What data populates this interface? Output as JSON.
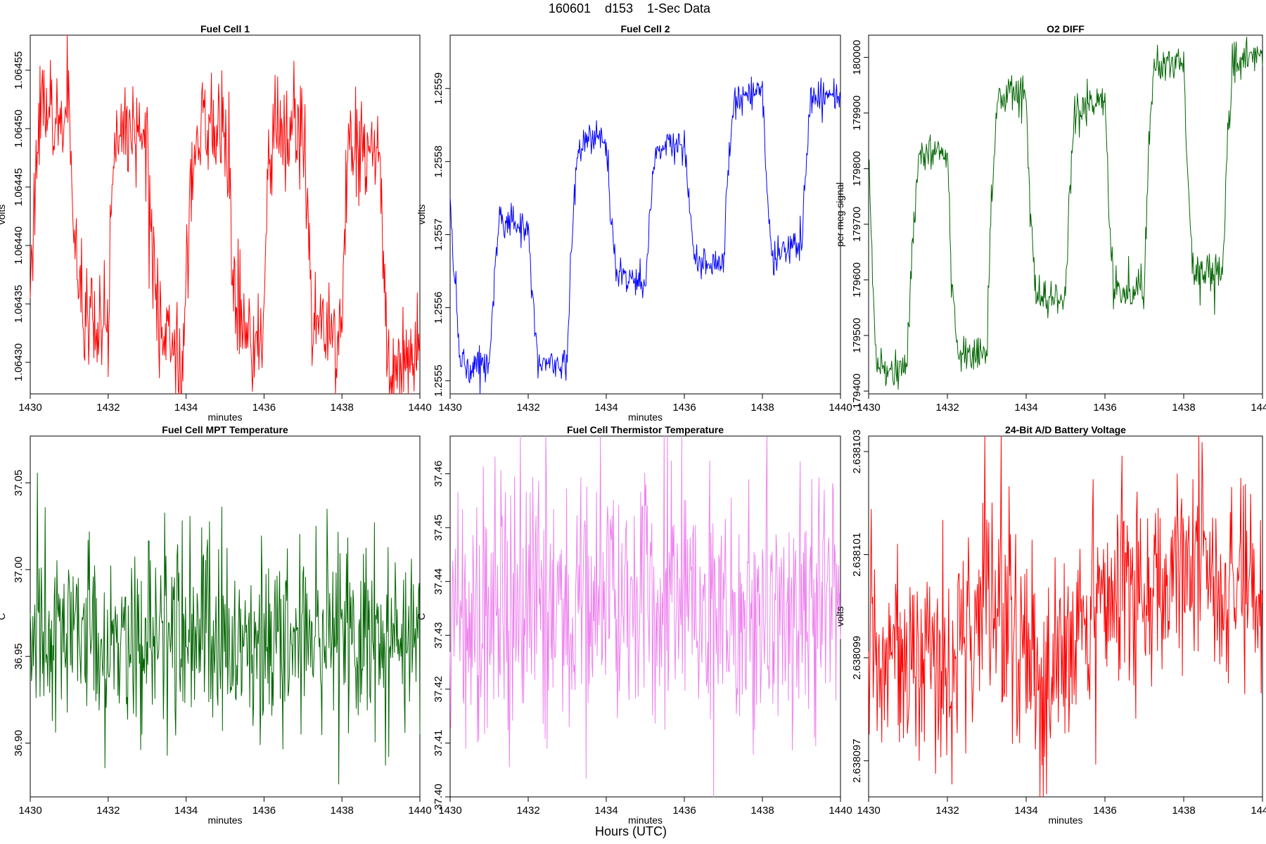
{
  "figure": {
    "title": "160601    d153    1-Sec Data",
    "bottom_label": "Hours (UTC)"
  },
  "chart_data": [
    {
      "type": "line",
      "title": "Fuel Cell 1",
      "xlabel": "minutes",
      "ylabel": "volts",
      "color": "#ff0000",
      "xlim": [
        1430,
        1440
      ],
      "ylim": [
        1.064273,
        1.06458
      ],
      "x_ticks": [
        1430,
        1432,
        1434,
        1436,
        1438,
        1440
      ],
      "x_tick_labels": [
        "1430",
        "1432",
        "1434",
        "1436",
        "1438",
        "1440"
      ],
      "y_ticks": [
        1.0643,
        1.06435,
        1.0644,
        1.06445,
        1.0645,
        1.06455
      ],
      "y_tick_labels": [
        "1.06430",
        "1.06435",
        "1.06440",
        "1.06445",
        "1.06450",
        "1.06455"
      ],
      "series": [
        {
          "x": [
            1430.0,
            1430.1,
            1430.2,
            1430.4,
            1431.0,
            1431.1,
            1431.2,
            1431.4,
            1431.8,
            1432.0,
            1432.1,
            1432.2,
            1432.4,
            1433.0,
            1433.1,
            1433.2,
            1433.4,
            1433.9,
            1434.0,
            1434.1,
            1434.2,
            1434.4,
            1435.0,
            1435.1,
            1435.2,
            1435.4,
            1435.9,
            1436.0,
            1436.1,
            1436.2,
            1436.4,
            1437.0,
            1437.1,
            1437.2,
            1437.4,
            1437.8,
            1438.0,
            1438.1,
            1438.2,
            1438.4,
            1439.0,
            1439.1,
            1439.2,
            1439.4,
            1439.8,
            1440.0
          ],
          "y": [
            1.06435,
            1.06445,
            1.0645,
            1.06451,
            1.0645,
            1.06445,
            1.06436,
            1.06433,
            1.06432,
            1.06433,
            1.06445,
            1.06449,
            1.0645,
            1.06449,
            1.06443,
            1.06435,
            1.06432,
            1.0643,
            1.06435,
            1.06445,
            1.06449,
            1.0645,
            1.0645,
            1.06445,
            1.06436,
            1.06433,
            1.06432,
            1.06434,
            1.06446,
            1.06449,
            1.06451,
            1.06449,
            1.06443,
            1.06436,
            1.06433,
            1.06432,
            1.06433,
            1.06444,
            1.06448,
            1.06449,
            1.06446,
            1.06436,
            1.0643,
            1.06429,
            1.0643,
            1.0643
          ]
        }
      ]
    },
    {
      "type": "line",
      "title": "Fuel Cell 2",
      "xlabel": "minutes",
      "ylabel": "volts",
      "color": "#0000ff",
      "xlim": [
        1430,
        1440
      ],
      "ylim": [
        1.255482,
        1.255973
      ],
      "x_ticks": [
        1430,
        1432,
        1434,
        1436,
        1438,
        1440
      ],
      "x_tick_labels": [
        "1430",
        "1432",
        "1434",
        "1436",
        "1438",
        "1440"
      ],
      "y_ticks": [
        1.2555,
        1.2556,
        1.2557,
        1.2558,
        1.2559
      ],
      "y_tick_labels": [
        "1.2555",
        "1.2556",
        "1.2557",
        "1.2558",
        "1.2559"
      ],
      "series": [
        {
          "x": [
            1430.0,
            1430.1,
            1430.25,
            1430.5,
            1431.0,
            1431.1,
            1431.25,
            1431.5,
            1432.0,
            1432.1,
            1432.25,
            1432.5,
            1433.0,
            1433.1,
            1433.25,
            1433.5,
            1434.0,
            1434.1,
            1434.25,
            1434.5,
            1435.0,
            1435.1,
            1435.25,
            1435.5,
            1436.0,
            1436.1,
            1436.25,
            1436.5,
            1437.0,
            1437.1,
            1437.25,
            1437.5,
            1438.0,
            1438.1,
            1438.25,
            1438.5,
            1439.0,
            1439.1,
            1439.25,
            1439.5,
            1440.0
          ],
          "y": [
            1.25574,
            1.25565,
            1.25553,
            1.25552,
            1.25552,
            1.25562,
            1.25572,
            1.25572,
            1.25571,
            1.25562,
            1.25553,
            1.25552,
            1.25553,
            1.25568,
            1.25581,
            1.25583,
            1.25583,
            1.25574,
            1.25565,
            1.25564,
            1.25563,
            1.25572,
            1.25581,
            1.25582,
            1.25582,
            1.25575,
            1.25567,
            1.25566,
            1.25566,
            1.25577,
            1.25588,
            1.25589,
            1.2559,
            1.25578,
            1.25567,
            1.25568,
            1.25569,
            1.25578,
            1.25589,
            1.25589,
            1.25589
          ]
        }
      ]
    },
    {
      "type": "line",
      "title": "O2 DIFF",
      "xlabel": "",
      "ylabel": "per meg signal",
      "color": "#006400",
      "xlim": [
        1430,
        1440
      ],
      "ylim": [
        179395,
        180040
      ],
      "x_ticks": [
        1430,
        1432,
        1434,
        1436,
        1438,
        1440
      ],
      "x_tick_labels": [
        "1430",
        "1432",
        "1434",
        "1436",
        "1438",
        "1440"
      ],
      "y_ticks": [
        179400,
        179500,
        179600,
        179700,
        179800,
        179900,
        180000
      ],
      "y_tick_labels": [
        "179400",
        "179500",
        "179600",
        "179700",
        "179800",
        "179900",
        "180000"
      ],
      "series": [
        {
          "x": [
            1430.0,
            1430.1,
            1430.2,
            1430.5,
            1431.0,
            1431.1,
            1431.25,
            1431.6,
            1432.0,
            1432.1,
            1432.25,
            1432.6,
            1433.0,
            1433.1,
            1433.25,
            1433.6,
            1434.0,
            1434.1,
            1434.25,
            1434.6,
            1435.0,
            1435.1,
            1435.25,
            1435.6,
            1436.0,
            1436.1,
            1436.25,
            1436.6,
            1437.0,
            1437.1,
            1437.25,
            1437.6,
            1438.0,
            1438.1,
            1438.25,
            1438.6,
            1439.0,
            1439.1,
            1439.25,
            1439.6,
            1440.0
          ],
          "y": [
            179840,
            179600,
            179450,
            179440,
            179445,
            179650,
            179820,
            179830,
            179830,
            179620,
            179470,
            179465,
            179465,
            179700,
            179920,
            179940,
            179935,
            179730,
            179570,
            179560,
            179560,
            179770,
            179910,
            179920,
            179920,
            179720,
            179580,
            179585,
            179590,
            179830,
            179980,
            179990,
            179985,
            179780,
            179620,
            179615,
            179620,
            179840,
            179990,
            180000,
            180000
          ]
        }
      ]
    },
    {
      "type": "line",
      "title": "Fuel Cell MPT Temperature",
      "xlabel": "minutes",
      "ylabel": "C",
      "color": "#006400",
      "xlim": [
        1430,
        1440
      ],
      "ylim": [
        36.869,
        37.077
      ],
      "x_ticks": [
        1430,
        1432,
        1434,
        1436,
        1438,
        1440
      ],
      "x_tick_labels": [
        "1430",
        "1432",
        "1434",
        "1436",
        "1438",
        "1440"
      ],
      "y_ticks": [
        36.9,
        36.95,
        37.0,
        37.05
      ],
      "y_tick_labels": [
        "36.90",
        "36.95",
        "37.00",
        "37.05"
      ],
      "series": [
        {
          "x": [
            1430.0,
            1430.5,
            1431.0,
            1431.5,
            1432.0,
            1432.5,
            1433.0,
            1433.5,
            1434.0,
            1434.5,
            1435.0,
            1435.5,
            1436.0,
            1436.5,
            1437.0,
            1437.5,
            1438.0,
            1438.5,
            1439.0,
            1439.5,
            1440.0
          ],
          "y": [
            36.96,
            36.96,
            36.96,
            36.96,
            36.96,
            36.96,
            36.96,
            36.96,
            36.96,
            36.96,
            36.96,
            36.96,
            36.96,
            36.96,
            36.96,
            36.96,
            36.96,
            36.96,
            36.96,
            36.96,
            36.96
          ]
        }
      ]
    },
    {
      "type": "line",
      "title": "Fuel Cell Thermistor Temperature",
      "xlabel": "minutes",
      "ylabel": "C",
      "color": "#ee82ee",
      "xlim": [
        1430,
        1440
      ],
      "ylim": [
        37.4,
        37.467
      ],
      "x_ticks": [
        1430,
        1432,
        1434,
        1436,
        1438,
        1440
      ],
      "x_tick_labels": [
        "1430",
        "1432",
        "1434",
        "1436",
        "1438",
        "1440"
      ],
      "y_ticks": [
        37.4,
        37.41,
        37.42,
        37.43,
        37.44,
        37.45,
        37.46
      ],
      "y_tick_labels": [
        "37.40",
        "37.41",
        "37.42",
        "37.43",
        "37.44",
        "37.45",
        "37.46"
      ],
      "series": [
        {
          "x": [
            1430.0,
            1430.5,
            1431.0,
            1431.5,
            1432.0,
            1432.5,
            1433.0,
            1433.5,
            1434.0,
            1434.5,
            1435.0,
            1435.5,
            1436.0,
            1436.5,
            1437.0,
            1437.5,
            1438.0,
            1438.5,
            1439.0,
            1439.5,
            1440.0
          ],
          "y": [
            37.436,
            37.436,
            37.436,
            37.436,
            37.436,
            37.436,
            37.436,
            37.436,
            37.436,
            37.436,
            37.436,
            37.436,
            37.436,
            37.436,
            37.436,
            37.436,
            37.436,
            37.436,
            37.436,
            37.436,
            37.436
          ]
        }
      ]
    },
    {
      "type": "line",
      "title": "24-Bit A/D Battery Voltage",
      "xlabel": "minutes",
      "ylabel": "volts",
      "color": "#ff0000",
      "xlim": [
        1430,
        1440
      ],
      "ylim": [
        2.6380963,
        2.6381033
      ],
      "x_ticks": [
        1430,
        1432,
        1434,
        1436,
        1438,
        1440
      ],
      "x_tick_labels": [
        "1430",
        "1432",
        "1434",
        "1436",
        "1438",
        "1440"
      ],
      "y_ticks": [
        2.638097,
        2.638099,
        2.638101,
        2.638103
      ],
      "y_tick_labels": [
        "2.638097",
        "2.638099",
        "2.638101",
        "2.638103"
      ],
      "series": [
        {
          "x": [
            1430.0,
            1430.5,
            1431.0,
            1431.5,
            1432.0,
            1432.5,
            1433.0,
            1433.5,
            1434.0,
            1434.5,
            1435.0,
            1435.5,
            1436.0,
            1436.5,
            1437.0,
            1437.5,
            1438.0,
            1438.5,
            1439.0,
            1439.5,
            1440.0
          ],
          "y": [
            2.6380994,
            2.6380992,
            2.638099,
            2.6380989,
            2.6380986,
            2.6380994,
            2.6381001,
            2.6380996,
            2.6380992,
            2.6380987,
            2.6380993,
            2.6380999,
            2.6381,
            2.6381002,
            2.6381004,
            2.6381004,
            2.6381009,
            2.6381006,
            2.6381004,
            2.6381003,
            2.6381007
          ]
        }
      ]
    }
  ]
}
